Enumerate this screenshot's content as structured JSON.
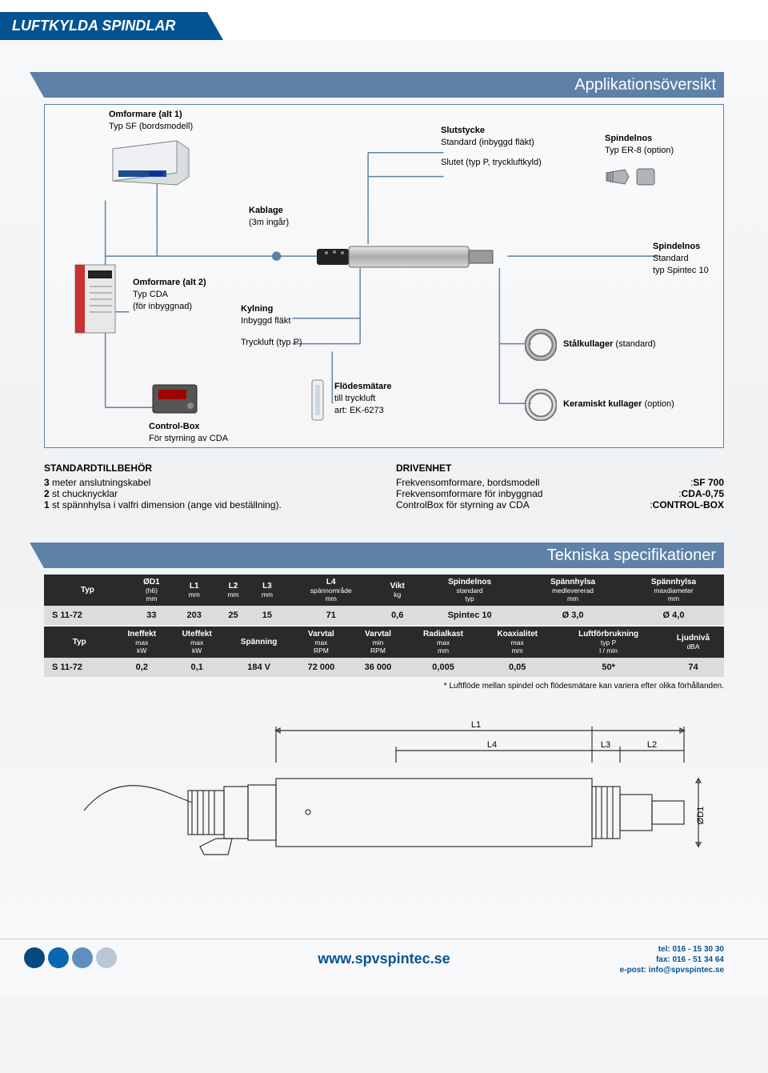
{
  "colors": {
    "primary": "#045494",
    "header_bar": "#5e81a8",
    "table_head": "#2a2a2a",
    "table_row": "#dcdcdc",
    "dot1": "#06497f",
    "dot2": "#0a67b1",
    "dot3": "#5f8fbf",
    "dot4": "#b8c7d6"
  },
  "page_title": "LUFTKYLDA SPINDLAR",
  "section1": {
    "title": "Applikationsöversikt"
  },
  "diagram": {
    "omf1": {
      "title": "Omformare (alt 1)",
      "sub": "Typ SF (bordsmodell)"
    },
    "slut": {
      "title": "Slutstycke",
      "l1": "Standard (inbyggd fläkt)",
      "l2": "Slutet (typ P, tryckluftkyld)"
    },
    "nos_opt": {
      "title": "Spindelnos",
      "sub": "Typ ER-8 (option)"
    },
    "kablage": {
      "title": "Kablage",
      "sub": "(3m ingår)"
    },
    "nos_std": {
      "title": "Spindelnos",
      "l1": "Standard",
      "l2": "typ Spintec 10"
    },
    "omf2": {
      "title": "Omformare (alt 2)",
      "l1": "Typ CDA",
      "l2": "(för inbyggnad)"
    },
    "kyl": {
      "title": "Kylning",
      "l1": "Inbyggd fläkt",
      "l2": "Tryckluft (typ P)"
    },
    "stal": {
      "title": "Stålkullager",
      "sub": "(standard)"
    },
    "flod": {
      "title": "Flödesmätare",
      "l1": "till tryckluft",
      "l2": "art: EK-6273"
    },
    "keram": {
      "title": "Keramiskt kullager",
      "sub": "(option)"
    },
    "cbox": {
      "title": "Control-Box",
      "sub": "För styrning av CDA"
    }
  },
  "std_acc": {
    "title": "STANDARDTILLBEHÖR",
    "items": [
      {
        "n": "3",
        "t": " meter anslutningskabel"
      },
      {
        "n": "2",
        "t": " st chucknycklar"
      },
      {
        "n": "1",
        "t": " st spännhylsa i valfri dimension (ange vid beställning)."
      }
    ]
  },
  "drive": {
    "title": "DRIVENHET",
    "rows": [
      {
        "k": "Frekvensomformare, bordsmodell",
        "v": "SF 700"
      },
      {
        "k": "Frekvensomformare för inbyggnad",
        "v": "CDA-0,75"
      },
      {
        "k": "ControlBox för styrning av CDA",
        "v": "CONTROL-BOX"
      }
    ]
  },
  "section2": {
    "title": "Tekniska specifikationer"
  },
  "table1": {
    "columns": [
      {
        "h": "Typ",
        "s": ""
      },
      {
        "h": "ØD1",
        "s": "(h6)\nmm"
      },
      {
        "h": "L1",
        "s": "mm"
      },
      {
        "h": "L2",
        "s": "mm"
      },
      {
        "h": "L3",
        "s": "mm"
      },
      {
        "h": "L4",
        "s": "spännområde\nmm"
      },
      {
        "h": "Vikt",
        "s": "kg"
      },
      {
        "h": "Spindelnos",
        "s": "standard\ntyp"
      },
      {
        "h": "Spännhylsa",
        "s": "medlevererad\nmm"
      },
      {
        "h": "Spännhylsa",
        "s": "maxdiameter\nmm"
      }
    ],
    "row": [
      "S 11-72",
      "33",
      "203",
      "25",
      "15",
      "71",
      "0,6",
      "Spintec 10",
      "Ø 3,0",
      "Ø 4,0"
    ]
  },
  "table2": {
    "columns": [
      {
        "h": "Typ",
        "s": ""
      },
      {
        "h": "Ineffekt",
        "s": "max\nkW"
      },
      {
        "h": "Uteffekt",
        "s": "max\nkW"
      },
      {
        "h": "Spänning",
        "s": ""
      },
      {
        "h": "Varvtal",
        "s": "max\nRPM"
      },
      {
        "h": "Varvtal",
        "s": "min\nRPM"
      },
      {
        "h": "Radialkast",
        "s": "max\nmm"
      },
      {
        "h": "Koaxialitet",
        "s": "max\nmm"
      },
      {
        "h": "Luftförbrukning",
        "s": "typ P\nl / min"
      },
      {
        "h": "Ljudnivå",
        "s": "dBA"
      }
    ],
    "row": [
      "S 11-72",
      "0,2",
      "0,1",
      "184 V",
      "72 000",
      "36 000",
      "0,005",
      "0,05",
      "50*",
      "74"
    ]
  },
  "footnote": "* Luftflöde mellan spindel och flödesmätare kan variera efter olika förhållanden.",
  "drawing_labels": {
    "L1": "L1",
    "L2": "L2",
    "L3": "L3",
    "L4": "L4",
    "D1": "ØD1"
  },
  "footer": {
    "url": "www.spvspintec.se",
    "tel": "tel: 016 - 15 30 30",
    "fax": "fax: 016 - 51 34 64",
    "email": "e-post: info@spvspintec.se"
  }
}
